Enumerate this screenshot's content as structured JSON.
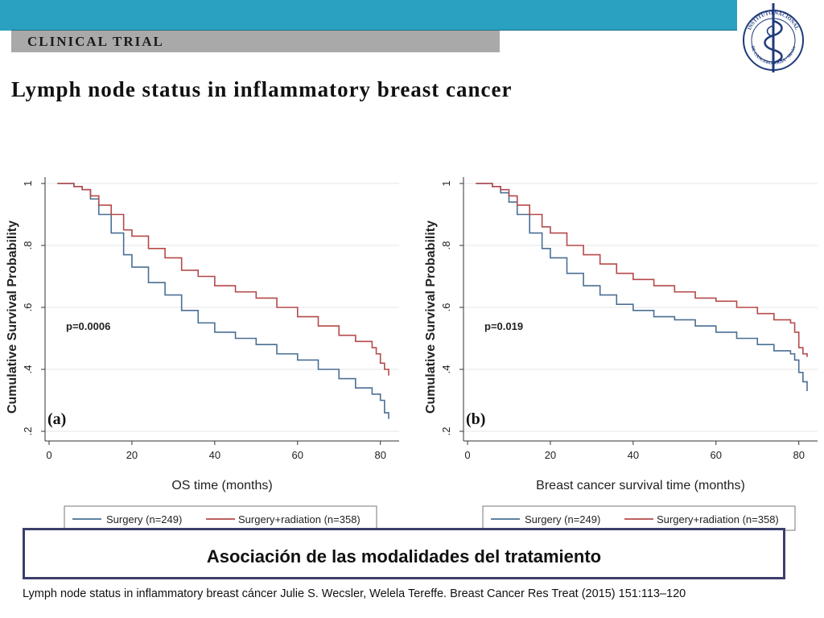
{
  "header": {
    "section_label": "CLINICAL TRIAL",
    "title": "Lymph node status in inflammatory breast cancer"
  },
  "logo": {
    "icon": "caduceus-seal-icon",
    "text_top": "INSTITUTO NACIONAL",
    "text_bottom": "DE CANCEROLOGIA · México"
  },
  "colors": {
    "topbar": "#2aa1c0",
    "surgery_line": "#4a6f93",
    "radiation_line": "#b5494a",
    "axis": "#333333"
  },
  "chart_data": [
    {
      "type": "line",
      "panel_label": "(a)",
      "xlabel": "OS time (months)",
      "ylabel": "Cumulative Survival Probability",
      "xlim": [
        0,
        82
      ],
      "ylim": [
        0.2,
        1.0
      ],
      "xticks": [
        "0",
        "20",
        "40",
        "60",
        "80"
      ],
      "yticks": [
        ".2",
        ".4",
        ".6",
        ".8",
        "1"
      ],
      "annotation": "p=0.0006",
      "grid": true,
      "legend_placement": "bottom",
      "series": [
        {
          "name": "Surgery (n=249)",
          "color": "#4a6f93",
          "x": [
            2,
            6,
            8,
            10,
            12,
            15,
            18,
            20,
            24,
            28,
            32,
            36,
            40,
            45,
            50,
            55,
            60,
            65,
            70,
            74,
            78,
            80,
            81,
            82
          ],
          "y": [
            1.0,
            0.99,
            0.98,
            0.95,
            0.9,
            0.84,
            0.77,
            0.73,
            0.68,
            0.64,
            0.59,
            0.55,
            0.52,
            0.5,
            0.48,
            0.45,
            0.43,
            0.4,
            0.37,
            0.34,
            0.32,
            0.3,
            0.26,
            0.24
          ]
        },
        {
          "name": "Surgery+radiation (n=358)",
          "color": "#b5494a",
          "x": [
            2,
            6,
            8,
            10,
            12,
            15,
            18,
            20,
            24,
            28,
            32,
            36,
            40,
            45,
            50,
            55,
            60,
            65,
            70,
            74,
            78,
            79,
            80,
            81,
            82
          ],
          "y": [
            1.0,
            0.99,
            0.98,
            0.96,
            0.93,
            0.9,
            0.85,
            0.83,
            0.79,
            0.76,
            0.72,
            0.7,
            0.67,
            0.65,
            0.63,
            0.6,
            0.57,
            0.54,
            0.51,
            0.49,
            0.47,
            0.45,
            0.42,
            0.4,
            0.38
          ]
        }
      ]
    },
    {
      "type": "line",
      "panel_label": "(b)",
      "xlabel": "Breast cancer survival time (months)",
      "ylabel": "Cumulative Survival Probability",
      "xlim": [
        0,
        82
      ],
      "ylim": [
        0.2,
        1.0
      ],
      "xticks": [
        "0",
        "20",
        "40",
        "60",
        "80"
      ],
      "yticks": [
        ".2",
        ".4",
        ".6",
        ".8",
        "1"
      ],
      "annotation": "p=0.019",
      "grid": true,
      "legend_placement": "bottom",
      "series": [
        {
          "name": "Surgery (n=249)",
          "color": "#4a6f93",
          "x": [
            2,
            6,
            8,
            10,
            12,
            15,
            18,
            20,
            24,
            28,
            32,
            36,
            40,
            45,
            50,
            55,
            60,
            65,
            70,
            74,
            78,
            79,
            80,
            81,
            82
          ],
          "y": [
            1.0,
            0.99,
            0.97,
            0.94,
            0.9,
            0.84,
            0.79,
            0.76,
            0.71,
            0.67,
            0.64,
            0.61,
            0.59,
            0.57,
            0.56,
            0.54,
            0.52,
            0.5,
            0.48,
            0.46,
            0.45,
            0.43,
            0.39,
            0.36,
            0.33
          ]
        },
        {
          "name": "Surgery+radiation (n=358)",
          "color": "#b5494a",
          "x": [
            2,
            6,
            8,
            10,
            12,
            15,
            18,
            20,
            24,
            28,
            32,
            36,
            40,
            45,
            50,
            55,
            60,
            65,
            70,
            74,
            78,
            79,
            80,
            81,
            82
          ],
          "y": [
            1.0,
            0.99,
            0.98,
            0.96,
            0.93,
            0.9,
            0.86,
            0.84,
            0.8,
            0.77,
            0.74,
            0.71,
            0.69,
            0.67,
            0.65,
            0.63,
            0.62,
            0.6,
            0.58,
            0.56,
            0.55,
            0.52,
            0.47,
            0.45,
            0.44
          ]
        }
      ]
    }
  ],
  "callout": {
    "text": "Asociación de las modalidades del tratamiento"
  },
  "citation": {
    "text": "Lymph node status in inflammatory breast cáncer Julie S. Wecsler, Welela Tereffe. Breast Cancer Res Treat (2015) 151:113–120"
  }
}
